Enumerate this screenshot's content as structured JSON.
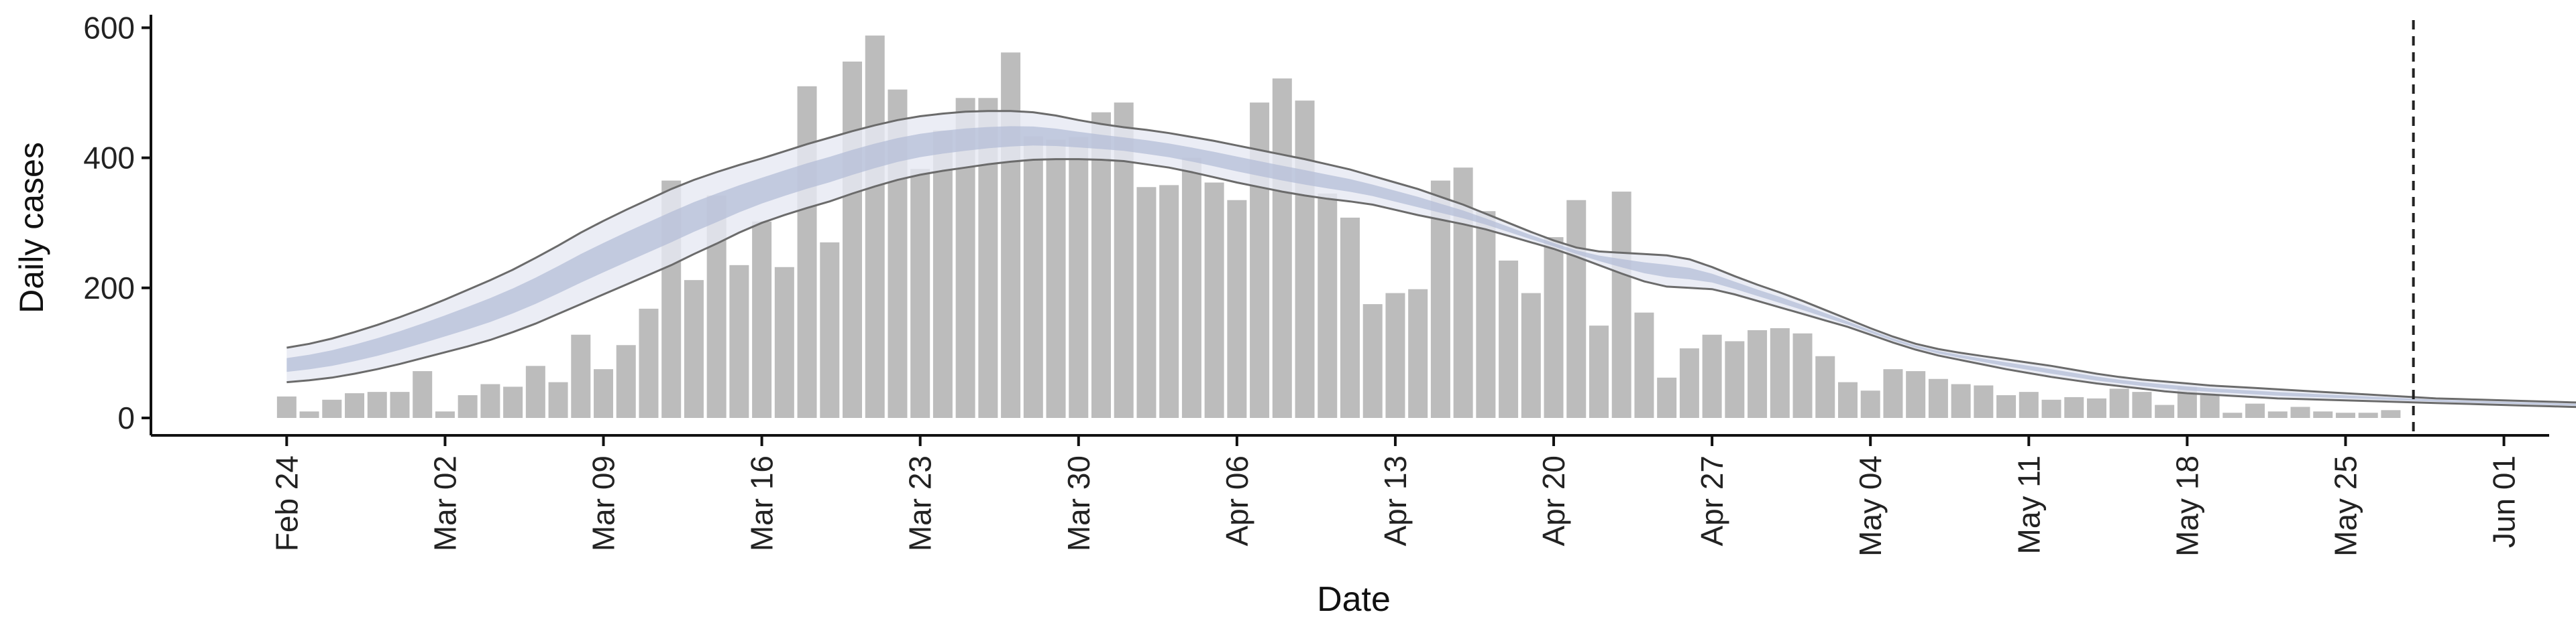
{
  "chart_data": {
    "type": "bar",
    "title": "",
    "xlabel": "Date",
    "ylabel": "Daily cases",
    "ylim": [
      0,
      620
    ],
    "yticks": [
      0,
      200,
      400,
      600
    ],
    "x_range": [
      "2020-02-18",
      "2020-06-03"
    ],
    "x_ticks": [
      {
        "date": "2020-02-24",
        "label": "Feb 24"
      },
      {
        "date": "2020-03-02",
        "label": "Mar 02"
      },
      {
        "date": "2020-03-09",
        "label": "Mar 09"
      },
      {
        "date": "2020-03-16",
        "label": "Mar 16"
      },
      {
        "date": "2020-03-23",
        "label": "Mar 23"
      },
      {
        "date": "2020-03-30",
        "label": "Mar 30"
      },
      {
        "date": "2020-04-06",
        "label": "Apr 06"
      },
      {
        "date": "2020-04-13",
        "label": "Apr 13"
      },
      {
        "date": "2020-04-20",
        "label": "Apr 20"
      },
      {
        "date": "2020-04-27",
        "label": "Apr 27"
      },
      {
        "date": "2020-05-04",
        "label": "May 04"
      },
      {
        "date": "2020-05-11",
        "label": "May 11"
      },
      {
        "date": "2020-05-18",
        "label": "May 18"
      },
      {
        "date": "2020-05-25",
        "label": "May 25"
      },
      {
        "date": "2020-06-01",
        "label": "Jun 01"
      }
    ],
    "vline_date": "2020-05-28",
    "colors": {
      "bars": "#bcbcbc",
      "outer_band": "#e6e8f2",
      "inner_band": "#b4bed7",
      "band_edge": "#6b6b6b",
      "vline": "#222222",
      "axis": "#111111"
    },
    "series": [
      {
        "kind": "bar",
        "start_date": "2020-02-24",
        "values": [
          33,
          10,
          28,
          38,
          40,
          40,
          72,
          10,
          35,
          52,
          48,
          80,
          55,
          128,
          75,
          112,
          168,
          365,
          212,
          342,
          235,
          302,
          232,
          510,
          270,
          548,
          588,
          505,
          383,
          442,
          492,
          492,
          562,
          433,
          428,
          432,
          470,
          485,
          355,
          358,
          400,
          362,
          335,
          485,
          522,
          488,
          345,
          308,
          175,
          192,
          198,
          365,
          385,
          318,
          242,
          192,
          278,
          335,
          142,
          348,
          162,
          62,
          107,
          128,
          118,
          135,
          138,
          130,
          95,
          55,
          42,
          75,
          72,
          60,
          52,
          50,
          35,
          40,
          28,
          32,
          30,
          45,
          40,
          20,
          48,
          35,
          8,
          22,
          10,
          17,
          10,
          8,
          8,
          12
        ]
      },
      {
        "kind": "band",
        "start_date": "2020-02-24",
        "step_days": 1,
        "lower_90": [
          55,
          58,
          62,
          68,
          75,
          83,
          92,
          101,
          110,
          120,
          132,
          145,
          160,
          175,
          190,
          205,
          220,
          235,
          252,
          268,
          285,
          300,
          312,
          323,
          333,
          345,
          356,
          366,
          374,
          380,
          385,
          390,
          394,
          397,
          398,
          398,
          397,
          395,
          390,
          385,
          378,
          370,
          362,
          355,
          348,
          342,
          337,
          333,
          328,
          320,
          312,
          305,
          298,
          290,
          280,
          270,
          260,
          248,
          235,
          222,
          210,
          202,
          200,
          198,
          190,
          180,
          170,
          160,
          150,
          140,
          128,
          116,
          105,
          96,
          89,
          82,
          75,
          69,
          63,
          58,
          53,
          49,
          45,
          41,
          38,
          36,
          34,
          32,
          30,
          29,
          28,
          27,
          26,
          25,
          24,
          23,
          22,
          21,
          20,
          19,
          18,
          17,
          16,
          15,
          14,
          13,
          12,
          11,
          10,
          9,
          9,
          8,
          8,
          8
        ],
        "upper_90": [
          108,
          114,
          122,
          132,
          143,
          155,
          168,
          182,
          197,
          212,
          228,
          246,
          265,
          285,
          303,
          320,
          336,
          352,
          366,
          378,
          389,
          399,
          410,
          421,
          431,
          441,
          450,
          458,
          464,
          468,
          471,
          472,
          472,
          470,
          465,
          458,
          452,
          447,
          443,
          438,
          432,
          426,
          419,
          412,
          405,
          398,
          390,
          382,
          372,
          362,
          352,
          340,
          328,
          314,
          300,
          286,
          273,
          262,
          256,
          254,
          252,
          250,
          244,
          232,
          218,
          205,
          193,
          180,
          166,
          152,
          138,
          125,
          114,
          106,
          100,
          95,
          90,
          85,
          80,
          74,
          68,
          63,
          59,
          56,
          53,
          50,
          48,
          46,
          44,
          42,
          40,
          38,
          36,
          34,
          32,
          30,
          29,
          28,
          27,
          26,
          25,
          24,
          23,
          22,
          21,
          20,
          19,
          18,
          17,
          16,
          15,
          14,
          13,
          12
        ]
      }
    ]
  }
}
